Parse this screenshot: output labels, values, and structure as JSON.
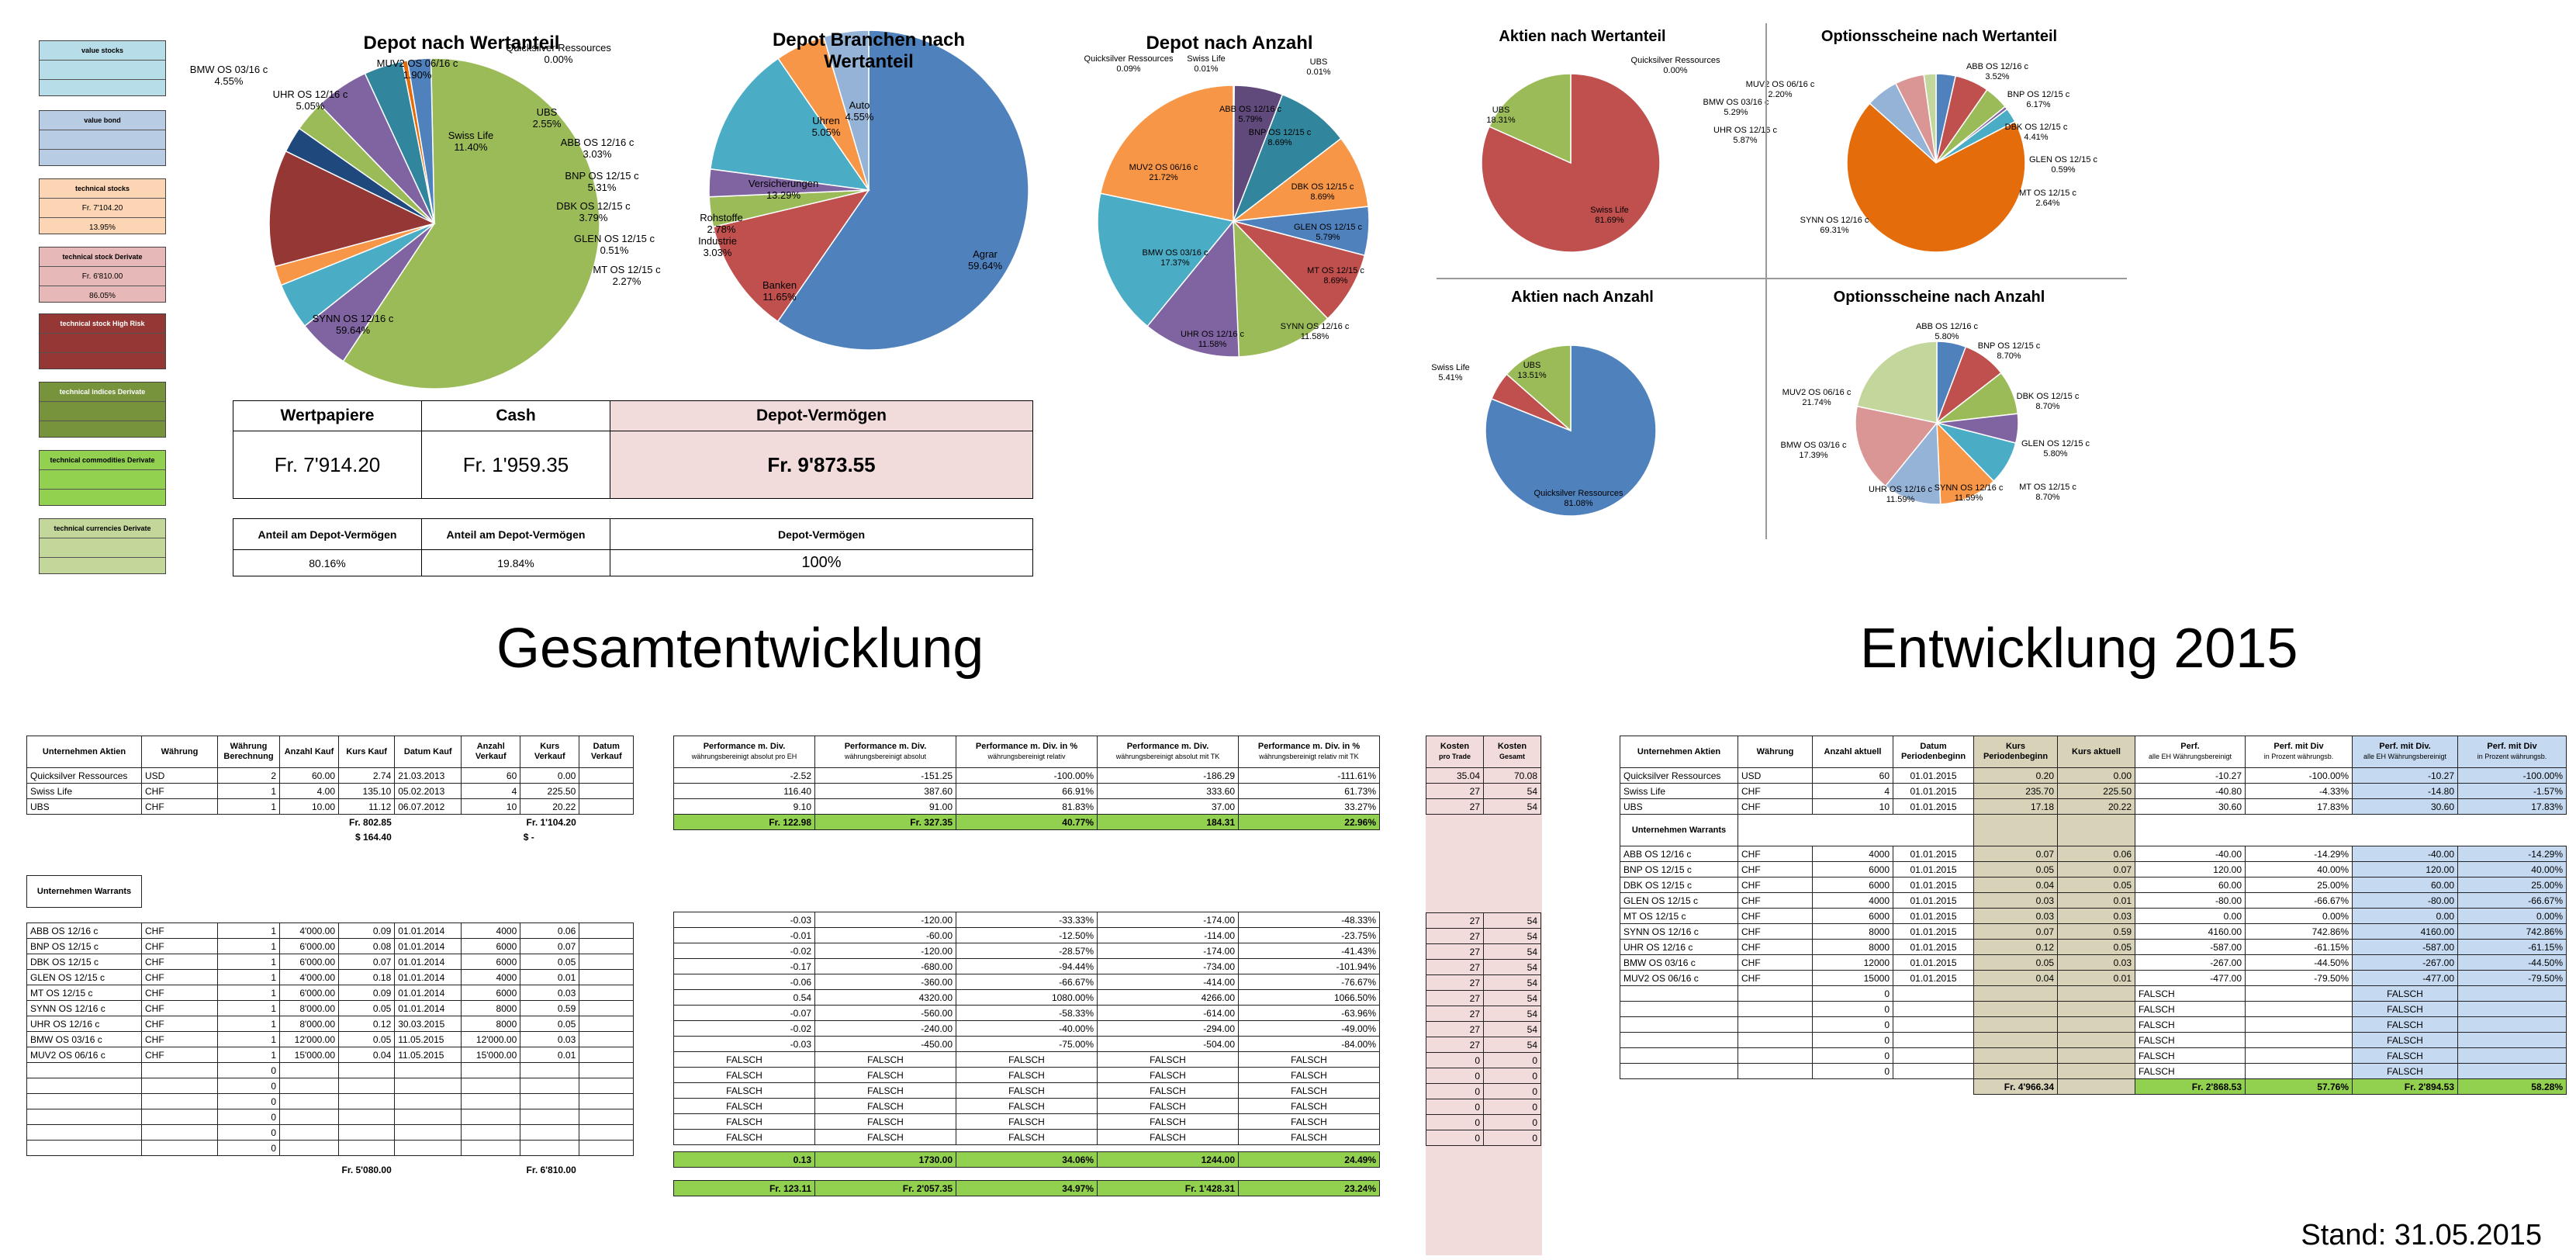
{
  "legend": [
    {
      "title": "value stocks",
      "rows": [
        "",
        ""
      ],
      "color": "#b7dee8"
    },
    {
      "title": "value bond",
      "rows": [
        "",
        ""
      ],
      "color": "#b8cce4"
    },
    {
      "title": "technical stocks",
      "rows": [
        "Fr. 7'104.20",
        "13.95%"
      ],
      "color": "#fcd5b4"
    },
    {
      "title": "technical stock Derivate",
      "rows": [
        "Fr. 6'810.00",
        "86.05%"
      ],
      "color": "#e6b8b7"
    },
    {
      "title": "technical stock High Risk",
      "rows": [
        "",
        ""
      ],
      "color": "#953735"
    },
    {
      "title": "technical indices Derivate",
      "rows": [
        "",
        ""
      ],
      "color": "#77933c"
    },
    {
      "title": "technical commodities Derivate",
      "rows": [
        "",
        ""
      ],
      "color": "#92d050"
    },
    {
      "title": "technical currencies Derivate",
      "rows": [
        "",
        ""
      ],
      "color": "#c4d79b"
    }
  ],
  "chart_data": [
    {
      "type": "pie",
      "title": "Depot nach Wertanteil",
      "labels": [
        "SYNN OS 12/16 c",
        "UHR OS 12/16 c",
        "BMW OS 03/16 c",
        "MUV2 OS 06/16 c",
        "Quicksilver Ressources",
        "Swiss Life",
        "UBS",
        "ABB OS 12/16 c",
        "BNP OS 12/15 c",
        "DBK OS 12/15 c",
        "GLEN OS 12/15 c",
        "MT OS 12/15 c"
      ],
      "values": [
        59.64,
        5.05,
        4.55,
        1.9,
        0.0,
        11.4,
        2.55,
        3.03,
        5.31,
        3.79,
        0.51,
        2.27
      ],
      "value_labels": [
        "59.64%",
        "5.05%",
        "4.55%",
        "1.90%",
        "0.00%",
        "11.40%",
        "2.55%",
        "3.03%",
        "5.31%",
        "3.79%",
        "0.51%",
        "2.27%"
      ]
    },
    {
      "type": "pie",
      "title": "Depot Branchen nach Wertanteil",
      "labels": [
        "Agrar",
        "Banken",
        "Industrie",
        "Rohstoffe",
        "Versicherungen",
        "Uhren",
        "Auto"
      ],
      "values": [
        59.64,
        11.65,
        3.03,
        2.78,
        13.29,
        5.05,
        4.55
      ],
      "value_labels": [
        "59.64%",
        "11.65%",
        "3.03%",
        "2.78%",
        "13.29%",
        "5.05%",
        "4.55%"
      ]
    },
    {
      "type": "pie",
      "title": "Depot nach Anzahl",
      "labels": [
        "Quicksilver Ressources",
        "Swiss Life",
        "UBS",
        "ABB OS 12/16 c",
        "BNP OS 12/15 c",
        "DBK OS 12/15 c",
        "GLEN OS 12/15 c",
        "MT OS 12/15 c",
        "SYNN OS 12/16 c",
        "UHR OS 12/16 c",
        "BMW OS 03/16 c",
        "MUV2 OS 06/16 c"
      ],
      "values": [
        0.09,
        0.01,
        0.01,
        5.79,
        8.69,
        8.69,
        5.79,
        8.69,
        11.58,
        11.58,
        17.37,
        21.72
      ],
      "value_labels": [
        "0.09%",
        "0.01%",
        "0.01%",
        "5.79%",
        "8.69%",
        "8.69%",
        "5.79%",
        "8.69%",
        "11.58%",
        "11.58%",
        "17.37%",
        "21.72%"
      ]
    },
    {
      "type": "pie",
      "title": "Aktien nach Wertanteil",
      "labels": [
        "Quicksilver Ressources",
        "Swiss Life",
        "UBS"
      ],
      "values": [
        0.0,
        81.69,
        18.31
      ],
      "value_labels": [
        "0.00%",
        "81.69%",
        "18.31%"
      ]
    },
    {
      "type": "pie",
      "title": "Optionsscheine nach Wertanteil",
      "labels": [
        "ABB OS 12/16 c",
        "BNP OS 12/15 c",
        "DBK OS 12/15 c",
        "GLEN OS 12/15 c",
        "MT OS 12/15 c",
        "SYNN OS 12/16 c",
        "UHR OS 12/16 c",
        "BMW OS 03/16 c",
        "MUV2 OS 06/16 c"
      ],
      "values": [
        3.52,
        6.17,
        4.41,
        0.59,
        2.64,
        69.31,
        5.87,
        5.29,
        2.2
      ],
      "value_labels": [
        "3.52%",
        "6.17%",
        "4.41%",
        "0.59%",
        "2.64%",
        "69.31%",
        "5.87%",
        "5.29%",
        "2.20%"
      ]
    },
    {
      "type": "pie",
      "title": "Aktien nach Anzahl",
      "labels": [
        "Quicksilver Ressources",
        "Swiss Life",
        "UBS"
      ],
      "values": [
        81.08,
        5.41,
        13.51
      ],
      "value_labels": [
        "81.08%",
        "5.41%",
        "13.51%"
      ]
    },
    {
      "type": "pie",
      "title": "Optionsscheine nach Anzahl",
      "labels": [
        "ABB OS 12/16 c",
        "BNP OS 12/15 c",
        "DBK OS 12/15 c",
        "GLEN OS 12/15 c",
        "MT OS 12/15 c",
        "SYNN OS 12/16 c",
        "UHR OS 12/16 c",
        "BMW OS 03/16 c",
        "MUV2 OS 06/16 c"
      ],
      "values": [
        5.8,
        8.7,
        8.7,
        5.8,
        8.7,
        11.59,
        11.59,
        17.39,
        21.74
      ],
      "value_labels": [
        "5.80%",
        "8.70%",
        "8.70%",
        "5.80%",
        "8.70%",
        "11.59%",
        "11.59%",
        "17.39%",
        "21.74%"
      ]
    }
  ],
  "summary": {
    "headers": [
      "Wertpapiere",
      "Cash",
      "Depot-Vermögen"
    ],
    "values": [
      "Fr. 7'914.20",
      "Fr. 1'959.35",
      "Fr. 9'873.55"
    ],
    "sub_headers": [
      "Anteil am Depot-Vermögen",
      "Anteil am Depot-Vermögen",
      "Depot-Vermögen"
    ],
    "sub_values": [
      "80.16%",
      "19.84%",
      "100%"
    ]
  },
  "titles": {
    "left": "Gesamtentwicklung",
    "right": "Entwicklung 2015",
    "stand": "Stand: 31.05.2015"
  },
  "gesamt": {
    "headers": [
      "Unternehmen Aktien",
      "Währung",
      "Währung Berechnung",
      "Anzahl Kauf",
      "Kurs Kauf",
      "Datum Kauf",
      "Anzahl Verkauf",
      "Kurs Verkauf",
      "Datum Verkauf"
    ],
    "aktien": [
      [
        "Quicksilver Ressources",
        "USD",
        "2",
        "60.00",
        "2.74",
        "21.03.2013",
        "60",
        "0.00",
        ""
      ],
      [
        "Swiss Life",
        "CHF",
        "1",
        "4.00",
        "135.10",
        "05.02.2013",
        "4",
        "225.50",
        ""
      ],
      [
        "UBS",
        "CHF",
        "1",
        "10.00",
        "11.12",
        "06.07.2012",
        "10",
        "20.22",
        ""
      ]
    ],
    "aktien_totals": {
      "kauf": "Fr. 802.85",
      "kauf_usd": "$    164.40",
      "verkauf": "Fr. 1'104.20",
      "verkauf_usd": "$          -"
    },
    "warrants_header": "Unternehmen Warrants",
    "warrants": [
      [
        "ABB OS 12/16 c",
        "CHF",
        "1",
        "4'000.00",
        "0.09",
        "01.01.2014",
        "4000",
        "0.06",
        ""
      ],
      [
        "BNP OS 12/15 c",
        "CHF",
        "1",
        "6'000.00",
        "0.08",
        "01.01.2014",
        "6000",
        "0.07",
        ""
      ],
      [
        "DBK OS 12/15 c",
        "CHF",
        "1",
        "6'000.00",
        "0.07",
        "01.01.2014",
        "6000",
        "0.05",
        ""
      ],
      [
        "GLEN OS 12/15 c",
        "CHF",
        "1",
        "4'000.00",
        "0.18",
        "01.01.2014",
        "4000",
        "0.01",
        ""
      ],
      [
        "MT OS 12/15 c",
        "CHF",
        "1",
        "6'000.00",
        "0.09",
        "01.01.2014",
        "6000",
        "0.03",
        ""
      ],
      [
        "SYNN OS 12/16 c",
        "CHF",
        "1",
        "8'000.00",
        "0.05",
        "01.01.2014",
        "8000",
        "0.59",
        ""
      ],
      [
        "UHR OS 12/16 c",
        "CHF",
        "1",
        "8'000.00",
        "0.12",
        "30.03.2015",
        "8000",
        "0.05",
        ""
      ],
      [
        "BMW OS 03/16 c",
        "CHF",
        "1",
        "12'000.00",
        "0.05",
        "11.05.2015",
        "12'000.00",
        "0.03",
        ""
      ],
      [
        "MUV2 OS 06/16 c",
        "CHF",
        "1",
        "15'000.00",
        "0.04",
        "11.05.2015",
        "15'000.00",
        "0.01",
        ""
      ],
      [
        "",
        "",
        "0",
        "",
        "",
        "",
        "",
        "",
        ""
      ],
      [
        "",
        "",
        "0",
        "",
        "",
        "",
        "",
        "",
        ""
      ],
      [
        "",
        "",
        "0",
        "",
        "",
        "",
        "",
        "",
        ""
      ],
      [
        "",
        "",
        "0",
        "",
        "",
        "",
        "",
        "",
        ""
      ],
      [
        "",
        "",
        "0",
        "",
        "",
        "",
        "",
        "",
        ""
      ],
      [
        "",
        "",
        "0",
        "",
        "",
        "",
        "",
        "",
        ""
      ]
    ],
    "warrants_totals": {
      "kauf": "Fr. 5'080.00",
      "verkauf": "Fr. 6'810.00"
    }
  },
  "performance": {
    "headers": [
      [
        "Performance m. Div.",
        "währungsbereinigt absolut pro EH"
      ],
      [
        "Performance m. Div.",
        "währungsbereinigt absolut"
      ],
      [
        "Performance m. Div. in %",
        "währungsbereinigt relativ"
      ],
      [
        "Performance m. Div.",
        "währungsbereinigt absolut mit TK"
      ],
      [
        "Performance m. Div. in %",
        "währungsbereinigt relativ mit TK"
      ]
    ],
    "aktien": [
      [
        "-2.52",
        "-151.25",
        "-100.00%",
        "-186.29",
        "-111.61%"
      ],
      [
        "116.40",
        "387.60",
        "66.91%",
        "333.60",
        "61.73%"
      ],
      [
        "9.10",
        "91.00",
        "81.83%",
        "37.00",
        "33.27%"
      ]
    ],
    "aktien_totals": [
      "Fr. 122.98",
      "Fr. 327.35",
      "40.77%",
      "184.31",
      "22.96%"
    ],
    "warrants": [
      [
        "-0.03",
        "-120.00",
        "-33.33%",
        "-174.00",
        "-48.33%"
      ],
      [
        "-0.01",
        "-60.00",
        "-12.50%",
        "-114.00",
        "-23.75%"
      ],
      [
        "-0.02",
        "-120.00",
        "-28.57%",
        "-174.00",
        "-41.43%"
      ],
      [
        "-0.17",
        "-680.00",
        "-94.44%",
        "-734.00",
        "-101.94%"
      ],
      [
        "-0.06",
        "-360.00",
        "-66.67%",
        "-414.00",
        "-76.67%"
      ],
      [
        "0.54",
        "4320.00",
        "1080.00%",
        "4266.00",
        "1066.50%"
      ],
      [
        "-0.07",
        "-560.00",
        "-58.33%",
        "-614.00",
        "-63.96%"
      ],
      [
        "-0.02",
        "-240.00",
        "-40.00%",
        "-294.00",
        "-49.00%"
      ],
      [
        "-0.03",
        "-450.00",
        "-75.00%",
        "-504.00",
        "-84.00%"
      ],
      [
        "FALSCH",
        "FALSCH",
        "FALSCH",
        "FALSCH",
        "FALSCH"
      ],
      [
        "FALSCH",
        "FALSCH",
        "FALSCH",
        "FALSCH",
        "FALSCH"
      ],
      [
        "FALSCH",
        "FALSCH",
        "FALSCH",
        "FALSCH",
        "FALSCH"
      ],
      [
        "FALSCH",
        "FALSCH",
        "FALSCH",
        "FALSCH",
        "FALSCH"
      ],
      [
        "FALSCH",
        "FALSCH",
        "FALSCH",
        "FALSCH",
        "FALSCH"
      ],
      [
        "FALSCH",
        "FALSCH",
        "FALSCH",
        "FALSCH",
        "FALSCH"
      ]
    ],
    "warrants_totals": [
      "0.13",
      "1730.00",
      "34.06%",
      "1244.00",
      "24.49%"
    ],
    "grand_totals": [
      "Fr. 123.11",
      "Fr. 2'057.35",
      "34.97%",
      "Fr. 1'428.31",
      "23.24%"
    ]
  },
  "kosten": {
    "headers": [
      [
        "Kosten",
        "pro Trade"
      ],
      [
        "Kosten",
        "Gesamt"
      ]
    ],
    "aktien": [
      [
        "35.04",
        "70.08"
      ],
      [
        "27",
        "54"
      ],
      [
        "27",
        "54"
      ]
    ],
    "warrants": [
      [
        "27",
        "54"
      ],
      [
        "27",
        "54"
      ],
      [
        "27",
        "54"
      ],
      [
        "27",
        "54"
      ],
      [
        "27",
        "54"
      ],
      [
        "27",
        "54"
      ],
      [
        "27",
        "54"
      ],
      [
        "27",
        "54"
      ],
      [
        "27",
        "54"
      ],
      [
        "0",
        "0"
      ],
      [
        "0",
        "0"
      ],
      [
        "0",
        "0"
      ],
      [
        "0",
        "0"
      ],
      [
        "0",
        "0"
      ],
      [
        "0",
        "0"
      ]
    ]
  },
  "e2015": {
    "headers": [
      "Unternehmen Aktien",
      "Währung",
      "Anzahl aktuell",
      "Datum Periodenbeginn",
      "Kurs Periodenbeginn",
      "Kurs aktuell"
    ],
    "aktien": [
      [
        "Quicksilver Ressources",
        "USD",
        "60",
        "01.01.2015",
        "0.20",
        "0.00"
      ],
      [
        "Swiss Life",
        "CHF",
        "4",
        "01.01.2015",
        "235.70",
        "225.50"
      ],
      [
        "UBS",
        "CHF",
        "10",
        "01.01.2015",
        "17.18",
        "20.22"
      ]
    ],
    "warrants_header": "Unternehmen Warrants",
    "warrants": [
      [
        "ABB OS 12/16 c",
        "CHF",
        "4000",
        "01.01.2015",
        "0.07",
        "0.06"
      ],
      [
        "BNP OS 12/15 c",
        "CHF",
        "6000",
        "01.01.2015",
        "0.05",
        "0.07"
      ],
      [
        "DBK OS 12/15 c",
        "CHF",
        "6000",
        "01.01.2015",
        "0.04",
        "0.05"
      ],
      [
        "GLEN OS 12/15 c",
        "CHF",
        "4000",
        "01.01.2015",
        "0.03",
        "0.01"
      ],
      [
        "MT OS 12/15 c",
        "CHF",
        "6000",
        "01.01.2015",
        "0.03",
        "0.03"
      ],
      [
        "SYNN OS 12/16 c",
        "CHF",
        "8000",
        "01.01.2015",
        "0.07",
        "0.59"
      ],
      [
        "UHR OS 12/16 c",
        "CHF",
        "8000",
        "01.01.2015",
        "0.12",
        "0.05"
      ],
      [
        "BMW OS 03/16 c",
        "CHF",
        "12000",
        "01.01.2015",
        "0.05",
        "0.03"
      ],
      [
        "MUV2 OS 06/16 c",
        "CHF",
        "15000",
        "01.01.2015",
        "0.04",
        "0.01"
      ],
      [
        "",
        "",
        "0",
        "",
        "",
        ""
      ],
      [
        "",
        "",
        "0",
        "",
        "",
        ""
      ],
      [
        "",
        "",
        "0",
        "",
        "",
        ""
      ],
      [
        "",
        "",
        "0",
        "",
        "",
        ""
      ],
      [
        "",
        "",
        "0",
        "",
        "",
        ""
      ],
      [
        "",
        "",
        "0",
        "",
        "",
        ""
      ]
    ],
    "total": "Fr. 4'966.34"
  },
  "perf2015": {
    "headers": [
      [
        "Perf.",
        "alle EH Währungsbereinigt"
      ],
      [
        "Perf. mit Div",
        "in Prozent währungsb."
      ],
      [
        "Perf. mit Div.",
        "alle EH Währungsbereinigt"
      ],
      [
        "Perf. mit Div",
        "in Prozent währungsb."
      ]
    ],
    "aktien": [
      [
        "-10.27",
        "-100.00%",
        "-10.27",
        "-100.00%"
      ],
      [
        "-40.80",
        "-4.33%",
        "-14.80",
        "-1.57%"
      ],
      [
        "30.60",
        "17.83%",
        "30.60",
        "17.83%"
      ]
    ],
    "warrants": [
      [
        "-40.00",
        "-14.29%",
        "-40.00",
        "-14.29%"
      ],
      [
        "120.00",
        "40.00%",
        "120.00",
        "40.00%"
      ],
      [
        "60.00",
        "25.00%",
        "60.00",
        "25.00%"
      ],
      [
        "-80.00",
        "-66.67%",
        "-80.00",
        "-66.67%"
      ],
      [
        "0.00",
        "0.00%",
        "0.00",
        "0.00%"
      ],
      [
        "4160.00",
        "742.86%",
        "4160.00",
        "742.86%"
      ],
      [
        "-587.00",
        "-61.15%",
        "-587.00",
        "-61.15%"
      ],
      [
        "-267.00",
        "-44.50%",
        "-267.00",
        "-44.50%"
      ],
      [
        "-477.00",
        "-79.50%",
        "-477.00",
        "-79.50%"
      ],
      [
        "FALSCH",
        "",
        "FALSCH",
        ""
      ],
      [
        "FALSCH",
        "",
        "FALSCH",
        ""
      ],
      [
        "FALSCH",
        "",
        "FALSCH",
        ""
      ],
      [
        "FALSCH",
        "",
        "FALSCH",
        ""
      ],
      [
        "FALSCH",
        "",
        "FALSCH",
        ""
      ],
      [
        "FALSCH",
        "",
        "FALSCH",
        ""
      ]
    ],
    "totals": [
      "Fr. 2'868.53",
      "57.76%",
      "Fr. 2'894.53",
      "58.28%"
    ]
  }
}
